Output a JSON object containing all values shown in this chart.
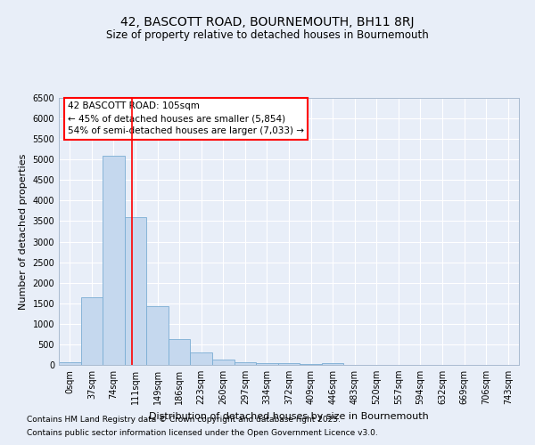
{
  "title": "42, BASCOTT ROAD, BOURNEMOUTH, BH11 8RJ",
  "subtitle": "Size of property relative to detached houses in Bournemouth",
  "xlabel": "Distribution of detached houses by size in Bournemouth",
  "ylabel": "Number of detached properties",
  "bar_labels": [
    "0sqm",
    "37sqm",
    "74sqm",
    "111sqm",
    "149sqm",
    "186sqm",
    "223sqm",
    "260sqm",
    "297sqm",
    "334sqm",
    "372sqm",
    "409sqm",
    "446sqm",
    "483sqm",
    "520sqm",
    "557sqm",
    "594sqm",
    "632sqm",
    "669sqm",
    "706sqm",
    "743sqm"
  ],
  "bar_values": [
    55,
    1650,
    5100,
    3600,
    1430,
    620,
    310,
    140,
    75,
    50,
    50,
    20,
    50,
    5,
    5,
    5,
    5,
    5,
    5,
    5,
    5
  ],
  "bar_color": "#c5d8ee",
  "bar_edge_color": "#7aadd4",
  "ylim": [
    0,
    6500
  ],
  "yticks": [
    0,
    500,
    1000,
    1500,
    2000,
    2500,
    3000,
    3500,
    4000,
    4500,
    5000,
    5500,
    6000,
    6500
  ],
  "red_line_x": 2.84,
  "annotation_text": "42 BASCOTT ROAD: 105sqm\n← 45% of detached houses are smaller (5,854)\n54% of semi-detached houses are larger (7,033) →",
  "bg_color": "#e8eef8",
  "grid_color": "#ffffff",
  "footnote_line1": "Contains HM Land Registry data © Crown copyright and database right 2025.",
  "footnote_line2": "Contains public sector information licensed under the Open Government Licence v3.0.",
  "title_fontsize": 10,
  "subtitle_fontsize": 8.5,
  "tick_fontsize": 7,
  "ylabel_fontsize": 8,
  "xlabel_fontsize": 8,
  "annot_fontsize": 7.5,
  "footnote_fontsize": 6.5
}
